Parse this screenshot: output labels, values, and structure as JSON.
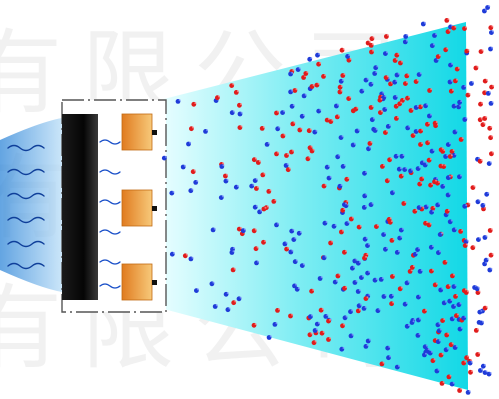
{
  "watermark": {
    "text": "有限公司",
    "color": "#e6e6e6"
  },
  "colors": {
    "airflow": "#3a8bd6",
    "beam_near": "#e9feff",
    "beam_far": "#12d8e6",
    "housing_stroke": "#555555",
    "emitter_dark": "#050505",
    "emitter_light": "#3a3a3a",
    "electrode_top": "#e07b1f",
    "electrode_bottom": "#f7c97a",
    "wave": "#1a50c8",
    "positive_ion": "#e01c1c",
    "negative_ion": "#1f3bd8"
  },
  "ion_seed": 7,
  "ion_count": 480
}
